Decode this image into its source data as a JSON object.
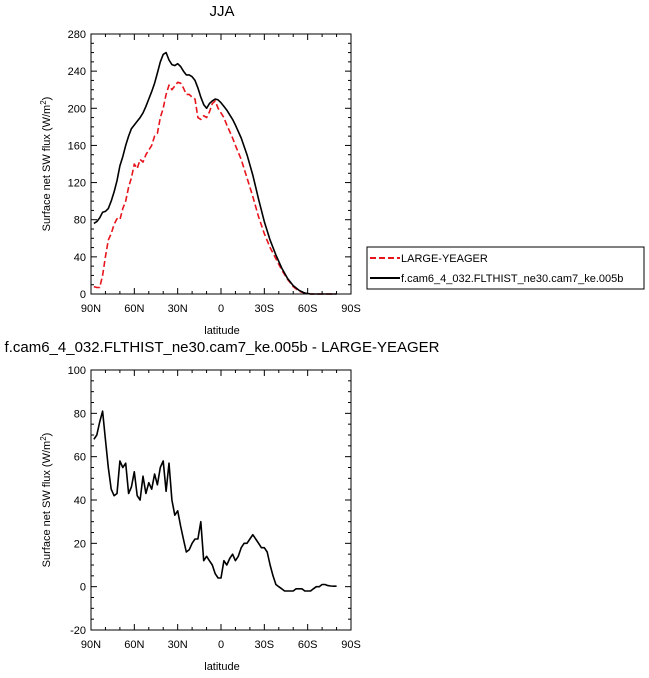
{
  "chart_data": [
    {
      "type": "line",
      "title": "JJA",
      "xlabel": "latitude",
      "ylabel": "Surface net SW flux (W/m",
      "ylabel_sup": "2",
      "ylabel_close": ")",
      "xlim": [
        90,
        -90
      ],
      "ylim": [
        0,
        280
      ],
      "x_ticks": [
        90,
        60,
        30,
        0,
        -30,
        -60,
        -90
      ],
      "x_tick_labels": [
        "90N",
        "60N",
        "30N",
        "0",
        "30S",
        "60S",
        "90S"
      ],
      "y_ticks": [
        0,
        40,
        80,
        120,
        160,
        200,
        240,
        280
      ],
      "y_tick_labels": [
        "0",
        "40",
        "80",
        "120",
        "160",
        "200",
        "240",
        "280"
      ],
      "legend_position": "right",
      "series": [
        {
          "name": "LARGE-YEAGER",
          "color": "#e8141c",
          "dash": "dashed",
          "x": [
            88,
            86,
            84,
            82,
            80,
            78,
            76,
            74,
            72,
            70,
            68,
            66,
            64,
            62,
            60,
            58,
            56,
            54,
            52,
            50,
            48,
            46,
            44,
            42,
            40,
            38,
            36,
            34,
            32,
            30,
            28,
            26,
            24,
            22,
            20,
            18,
            16,
            14,
            12,
            10,
            8,
            6,
            4,
            2,
            0,
            -2,
            -4,
            -6,
            -8,
            -10,
            -14,
            -18,
            -22,
            -26,
            -30,
            -34,
            -38,
            -42,
            -46,
            -50,
            -54,
            -58,
            -62,
            -66,
            -70,
            -74,
            -78,
            -80
          ],
          "y": [
            8,
            7,
            7,
            20,
            40,
            58,
            65,
            75,
            81,
            80,
            92,
            100,
            115,
            125,
            140,
            135,
            145,
            142,
            150,
            155,
            160,
            170,
            173,
            190,
            200,
            215,
            225,
            220,
            224,
            228,
            227,
            222,
            215,
            215,
            212,
            210,
            190,
            188,
            192,
            190,
            196,
            205,
            208,
            200,
            195,
            190,
            182,
            175,
            168,
            160,
            145,
            125,
            105,
            83,
            65,
            50,
            38,
            26,
            16,
            8,
            3,
            1,
            0,
            0,
            0,
            0,
            0,
            0
          ]
        },
        {
          "name": "f.cam6_4_032.FLTHIST_ne30.cam7_ke.005b",
          "color": "#000000",
          "dash": "solid",
          "x": [
            88,
            86,
            84,
            82,
            80,
            78,
            76,
            74,
            72,
            70,
            68,
            66,
            64,
            62,
            60,
            58,
            56,
            54,
            52,
            50,
            48,
            46,
            44,
            42,
            40,
            38,
            36,
            34,
            32,
            30,
            28,
            26,
            24,
            22,
            20,
            18,
            16,
            14,
            12,
            10,
            8,
            6,
            4,
            2,
            0,
            -2,
            -4,
            -6,
            -8,
            -10,
            -14,
            -18,
            -22,
            -26,
            -30,
            -34,
            -38,
            -42,
            -46,
            -50,
            -54,
            -58,
            -62,
            -66,
            -70,
            -74,
            -78,
            -80
          ],
          "y": [
            76,
            78,
            82,
            88,
            89,
            92,
            100,
            110,
            122,
            138,
            148,
            160,
            170,
            178,
            182,
            186,
            190,
            195,
            202,
            210,
            218,
            227,
            238,
            250,
            258,
            260,
            252,
            247,
            246,
            248,
            245,
            240,
            236,
            236,
            234,
            230,
            222,
            212,
            204,
            200,
            205,
            208,
            210,
            209,
            206,
            202,
            198,
            193,
            188,
            182,
            168,
            150,
            128,
            102,
            78,
            58,
            42,
            28,
            17,
            9,
            4,
            1,
            0,
            0,
            0,
            0,
            0,
            0
          ]
        }
      ]
    },
    {
      "type": "line",
      "title": "f.cam6_4_032.FLTHIST_ne30.cam7_ke.005b - LARGE-YEAGER",
      "xlabel": "latitude",
      "ylabel": "Surface net SW flux (W/m",
      "ylabel_sup": "2",
      "ylabel_close": ")",
      "xlim": [
        90,
        -90
      ],
      "ylim": [
        -20,
        100
      ],
      "x_ticks": [
        90,
        60,
        30,
        0,
        -30,
        -60,
        -90
      ],
      "x_tick_labels": [
        "90N",
        "60N",
        "30N",
        "0",
        "30S",
        "60S",
        "90S"
      ],
      "y_ticks": [
        -20,
        0,
        20,
        40,
        60,
        80,
        100
      ],
      "y_tick_labels": [
        "-20",
        "0",
        "20",
        "40",
        "60",
        "80",
        "100"
      ],
      "series": [
        {
          "color": "#000000",
          "dash": "solid",
          "x": [
            88,
            86,
            84,
            82,
            80,
            78,
            76,
            74,
            72,
            70,
            68,
            66,
            64,
            62,
            60,
            58,
            56,
            54,
            52,
            50,
            48,
            46,
            44,
            42,
            40,
            38,
            36,
            34,
            32,
            30,
            28,
            26,
            24,
            22,
            20,
            18,
            16,
            14,
            12,
            10,
            8,
            6,
            4,
            2,
            0,
            -2,
            -4,
            -6,
            -8,
            -10,
            -12,
            -14,
            -16,
            -18,
            -20,
            -22,
            -24,
            -26,
            -28,
            -30,
            -32,
            -34,
            -36,
            -38,
            -40,
            -42,
            -44,
            -46,
            -48,
            -50,
            -52,
            -54,
            -56,
            -58,
            -60,
            -62,
            -64,
            -66,
            -68,
            -70,
            -72,
            -74,
            -76,
            -78,
            -80
          ],
          "y": [
            68,
            70,
            76,
            81,
            68,
            55,
            45,
            42,
            43,
            58,
            55,
            57,
            43,
            46,
            53,
            42,
            40,
            51,
            43,
            48,
            45,
            52,
            47,
            55,
            58,
            44,
            57,
            40,
            33,
            35,
            28,
            22,
            16,
            17,
            20,
            22,
            22,
            30,
            12,
            14,
            12,
            10,
            6,
            4,
            4,
            12,
            10,
            13,
            15,
            12,
            14,
            18,
            20,
            20,
            22,
            24,
            22,
            20,
            18,
            18,
            16,
            10,
            5,
            1,
            0,
            -1,
            -2,
            -2,
            -2,
            -2,
            -1,
            -1,
            -1,
            -2,
            -2,
            -2,
            -1,
            0,
            0,
            1,
            1,
            0.5,
            0.3,
            0.2,
            0.2
          ]
        }
      ]
    }
  ]
}
